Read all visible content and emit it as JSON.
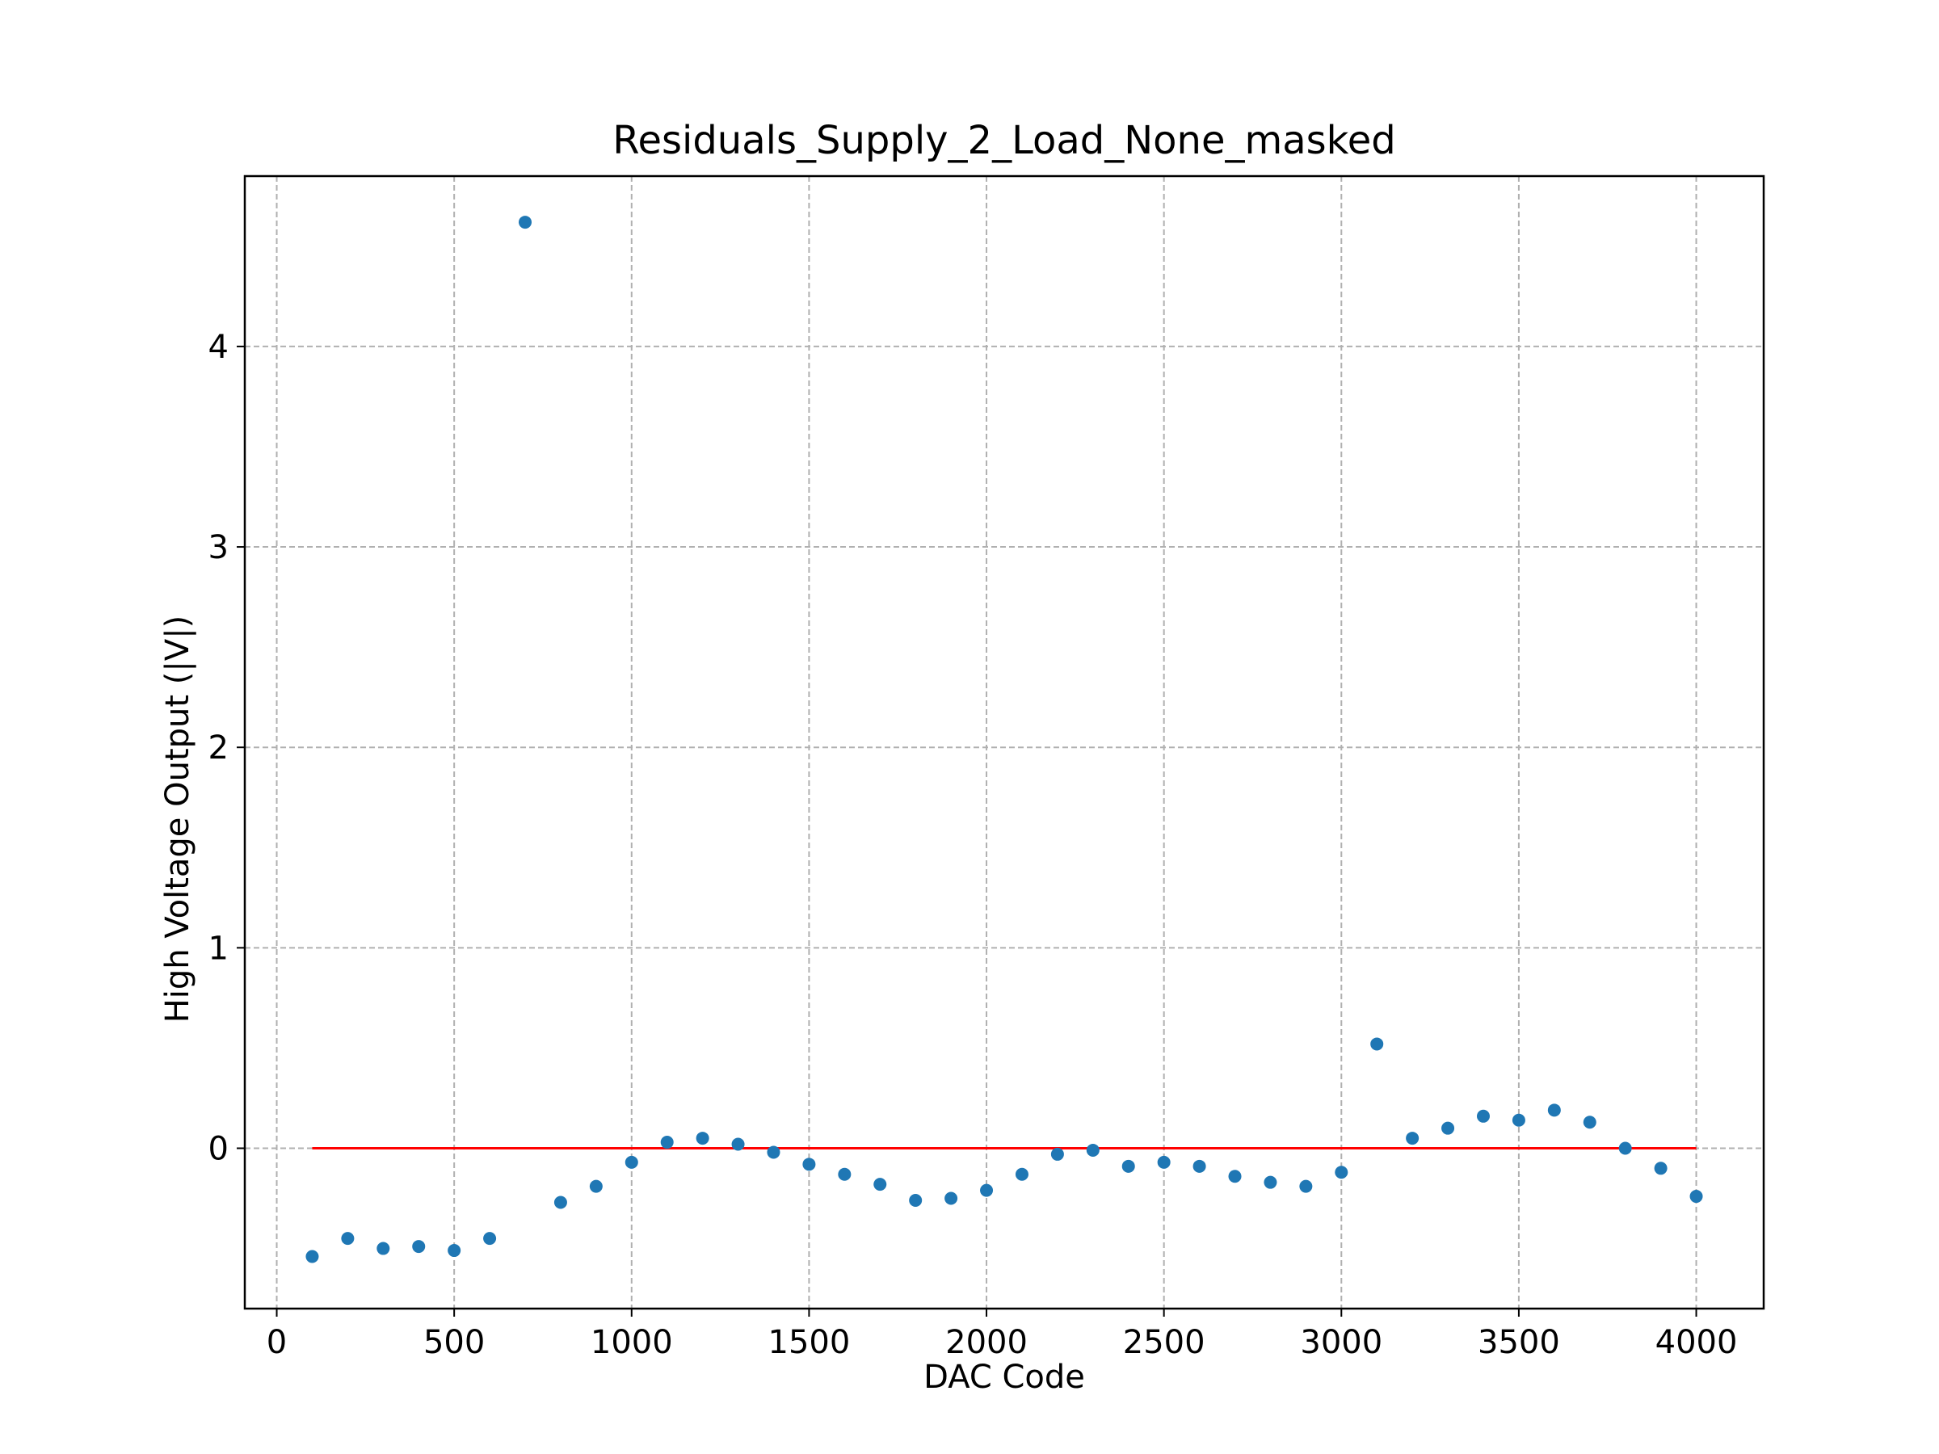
{
  "chart_data": {
    "type": "scatter",
    "title": "Residuals_Supply_2_Load_None_masked",
    "xlabel": "DAC Code",
    "ylabel": "High Voltage Output (|V|)",
    "xlim": [
      -90,
      4190
    ],
    "ylim": [
      -0.8,
      4.85
    ],
    "xticks": [
      0,
      500,
      1000,
      1500,
      2000,
      2500,
      3000,
      3500,
      4000
    ],
    "yticks": [
      0,
      1,
      2,
      3,
      4
    ],
    "grid": true,
    "series": [
      {
        "color": "#1f77b4",
        "x": [
          100,
          200,
          300,
          400,
          500,
          600,
          700,
          800,
          900,
          1000,
          1100,
          1200,
          1300,
          1400,
          1500,
          1600,
          1700,
          1800,
          1900,
          2000,
          2100,
          2200,
          2300,
          2400,
          2500,
          2600,
          2700,
          2800,
          2900,
          3000,
          3100,
          3200,
          3300,
          3400,
          3500,
          3600,
          3700,
          3800,
          3900,
          4000
        ],
        "y": [
          -0.54,
          -0.45,
          -0.5,
          -0.49,
          -0.51,
          -0.45,
          4.62,
          -0.27,
          -0.19,
          -0.07,
          0.03,
          0.05,
          0.02,
          -0.02,
          -0.08,
          -0.13,
          -0.18,
          -0.26,
          -0.25,
          -0.21,
          -0.13,
          -0.03,
          -0.01,
          -0.09,
          -0.07,
          -0.09,
          -0.14,
          -0.17,
          -0.19,
          -0.12,
          0.52,
          0.05,
          0.1,
          0.16,
          0.14,
          0.19,
          0.13,
          0.0,
          -0.1,
          -0.24
        ]
      }
    ],
    "reference_line": {
      "color": "#ff0000",
      "x": [
        100,
        4000
      ],
      "y": [
        0,
        0
      ]
    }
  }
}
